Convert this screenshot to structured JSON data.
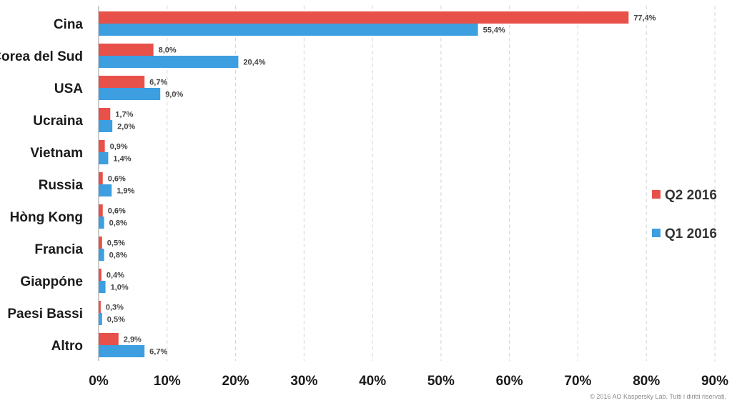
{
  "chart_data": {
    "type": "bar",
    "orientation": "horizontal",
    "title": "",
    "xlabel": "",
    "ylabel": "",
    "categories": [
      "Cina",
      "Corea del Sud",
      "USA",
      "Ucraina",
      "Vietnam",
      "Russia",
      "Hòng Kong",
      "Francia",
      "Giappóne",
      "Paesi Bassi",
      "Altro"
    ],
    "series": [
      {
        "name": "Q2 2016",
        "color": "#e8504a",
        "values": [
          77.4,
          8.0,
          6.7,
          1.7,
          0.9,
          0.6,
          0.6,
          0.5,
          0.4,
          0.3,
          2.9
        ],
        "labels": [
          "77,4%",
          "8,0%",
          "6,7%",
          "1,7%",
          "0,9%",
          "0,6%",
          "0,6%",
          "0,5%",
          "0,4%",
          "0,3%",
          "2,9%"
        ]
      },
      {
        "name": "Q1 2016",
        "color": "#3d9ee0",
        "values": [
          55.4,
          20.4,
          9.0,
          2.0,
          1.4,
          1.9,
          0.8,
          0.8,
          1.0,
          0.5,
          6.7
        ],
        "labels": [
          "55,4%",
          "20,4%",
          "9,0%",
          "2,0%",
          "1,4%",
          "1,9%",
          "0,8%",
          "0,8%",
          "1,0%",
          "0,5%",
          "6,7%"
        ]
      }
    ],
    "xlim": [
      0,
      90
    ],
    "xticks": [
      0,
      10,
      20,
      30,
      40,
      50,
      60,
      70,
      80,
      90
    ],
    "xtick_labels": [
      "0%",
      "10%",
      "20%",
      "30%",
      "40%",
      "50%",
      "60%",
      "70%",
      "80%",
      "90%"
    ],
    "grid": "vertical dashed",
    "legend": {
      "placement": "right",
      "entries": [
        {
          "label": "Q2 2016",
          "color": "#e8504a"
        },
        {
          "label": "Q1 2016",
          "color": "#3d9ee0"
        }
      ]
    }
  },
  "footer": {
    "copyright": "© 2016 AO Kaspersky Lab. Tutti i diritti riservati."
  }
}
